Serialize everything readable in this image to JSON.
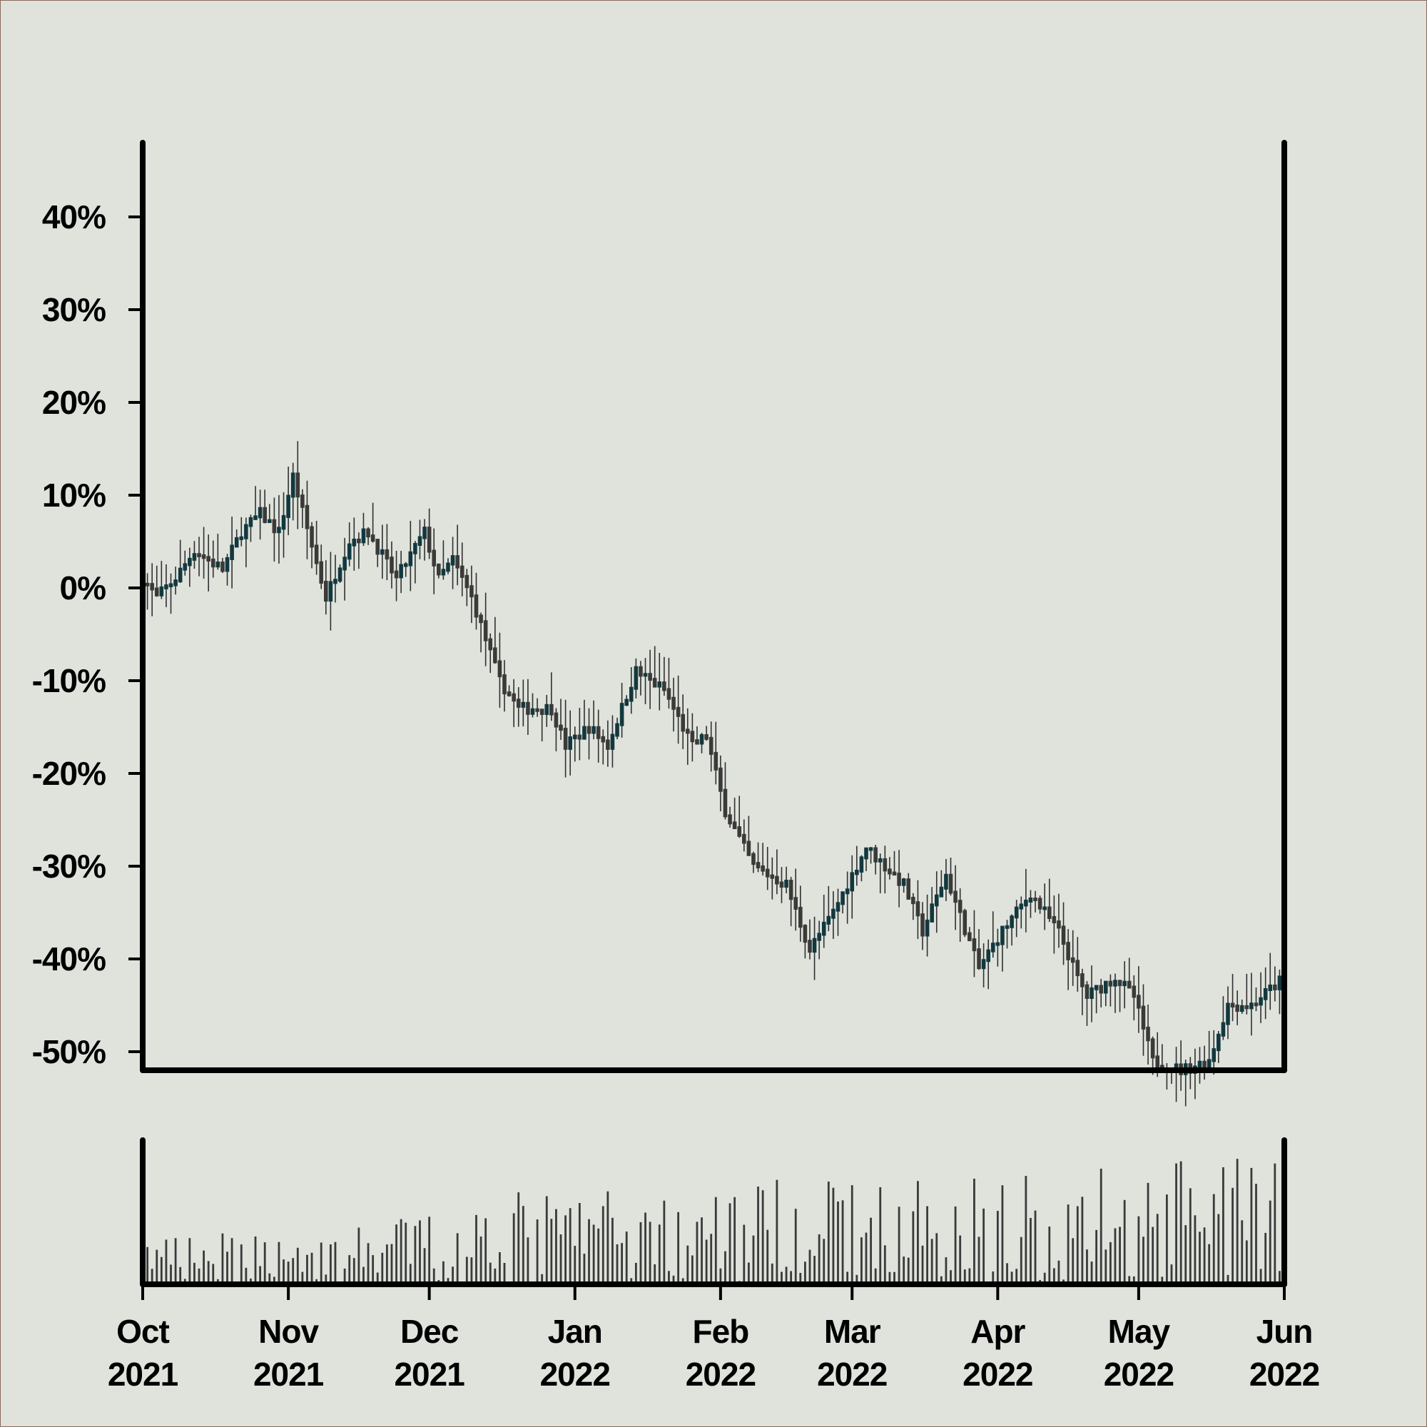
{
  "chart_data": {
    "type": "candlestick",
    "panels": [
      "price",
      "volume"
    ],
    "y_axis": {
      "unit": "%",
      "ticks": [
        40,
        30,
        20,
        10,
        0,
        -10,
        -20,
        -30,
        -40,
        -50
      ],
      "tick_labels": [
        "40%",
        "30%",
        "20%",
        "10%",
        "0%",
        "-10%",
        "-20%",
        "-30%",
        "-40%",
        "-50%"
      ],
      "range": [
        -52,
        48
      ]
    },
    "x_axis": {
      "range": [
        "2021-10-01",
        "2022-06-01"
      ],
      "ticks": [
        {
          "date": "2021-10-01",
          "month": "Oct",
          "year": "2021"
        },
        {
          "date": "2021-11-01",
          "month": "Nov",
          "year": "2021"
        },
        {
          "date": "2021-12-01",
          "month": "Dec",
          "year": "2021"
        },
        {
          "date": "2022-01-01",
          "month": "Jan",
          "year": "2022"
        },
        {
          "date": "2022-02-01",
          "month": "Feb",
          "year": "2022"
        },
        {
          "date": "2022-03-01",
          "month": "Mar",
          "year": "2022"
        },
        {
          "date": "2022-04-01",
          "month": "Apr",
          "year": "2022"
        },
        {
          "date": "2022-05-01",
          "month": "May",
          "year": "2022"
        },
        {
          "date": "2022-06-01",
          "month": "Jun",
          "year": "2022"
        }
      ]
    },
    "price_trend": [
      {
        "date": "2021-10-01",
        "value": 1
      },
      {
        "date": "2021-10-04",
        "value": -1
      },
      {
        "date": "2021-10-08",
        "value": 1
      },
      {
        "date": "2021-10-12",
        "value": 4
      },
      {
        "date": "2021-10-18",
        "value": 2
      },
      {
        "date": "2021-10-22",
        "value": 6
      },
      {
        "date": "2021-10-26",
        "value": 8
      },
      {
        "date": "2021-10-30",
        "value": 6
      },
      {
        "date": "2021-11-02",
        "value": 12
      },
      {
        "date": "2021-11-09",
        "value": -1
      },
      {
        "date": "2021-11-14",
        "value": 5
      },
      {
        "date": "2021-11-18",
        "value": 6
      },
      {
        "date": "2021-11-24",
        "value": 1
      },
      {
        "date": "2021-11-30",
        "value": 6
      },
      {
        "date": "2021-12-03",
        "value": 1
      },
      {
        "date": "2021-12-06",
        "value": 3
      },
      {
        "date": "2021-12-10",
        "value": -1
      },
      {
        "date": "2021-12-16",
        "value": -10
      },
      {
        "date": "2021-12-20",
        "value": -13
      },
      {
        "date": "2021-12-27",
        "value": -13
      },
      {
        "date": "2021-12-30",
        "value": -17
      },
      {
        "date": "2022-01-04",
        "value": -15
      },
      {
        "date": "2022-01-08",
        "value": -17
      },
      {
        "date": "2022-01-14",
        "value": -9
      },
      {
        "date": "2022-01-20",
        "value": -11
      },
      {
        "date": "2022-01-26",
        "value": -17
      },
      {
        "date": "2022-01-29",
        "value": -16
      },
      {
        "date": "2022-02-02",
        "value": -24
      },
      {
        "date": "2022-02-08",
        "value": -30
      },
      {
        "date": "2022-02-15",
        "value": -32
      },
      {
        "date": "2022-02-20",
        "value": -39
      },
      {
        "date": "2022-02-25",
        "value": -35
      },
      {
        "date": "2022-03-01",
        "value": -31
      },
      {
        "date": "2022-03-04",
        "value": -28
      },
      {
        "date": "2022-03-08",
        "value": -30
      },
      {
        "date": "2022-03-12",
        "value": -32
      },
      {
        "date": "2022-03-16",
        "value": -37
      },
      {
        "date": "2022-03-21",
        "value": -31
      },
      {
        "date": "2022-03-28",
        "value": -41
      },
      {
        "date": "2022-04-02",
        "value": -37
      },
      {
        "date": "2022-04-08",
        "value": -33
      },
      {
        "date": "2022-04-14",
        "value": -37
      },
      {
        "date": "2022-04-18",
        "value": -42
      },
      {
        "date": "2022-04-20",
        "value": -44
      },
      {
        "date": "2022-04-26",
        "value": -42
      },
      {
        "date": "2022-04-30",
        "value": -44
      },
      {
        "date": "2022-05-04",
        "value": -51
      },
      {
        "date": "2022-05-10",
        "value": -52
      },
      {
        "date": "2022-05-16",
        "value": -51
      },
      {
        "date": "2022-05-20",
        "value": -45
      },
      {
        "date": "2022-05-25",
        "value": -45
      },
      {
        "date": "2022-06-01",
        "value": -42
      }
    ],
    "volume": {
      "relative_to_max": true,
      "profile": [
        {
          "date": "2021-10-01",
          "typical": 0.25
        },
        {
          "date": "2021-11-15",
          "typical": 0.3
        },
        {
          "date": "2021-12-20",
          "typical": 0.5
        },
        {
          "date": "2022-02-10",
          "typical": 0.55
        },
        {
          "date": "2022-04-15",
          "typical": 0.6
        },
        {
          "date": "2022-06-01",
          "typical": 0.7
        }
      ],
      "max": 1.0
    },
    "colors": {
      "background": "#dfe3dc",
      "axis": "#000000",
      "candle_up": "#12383f",
      "candle_down": "#3b3a38",
      "wick": "#2f3030",
      "volume_bar": "#3a3a3a"
    },
    "grid": false
  }
}
